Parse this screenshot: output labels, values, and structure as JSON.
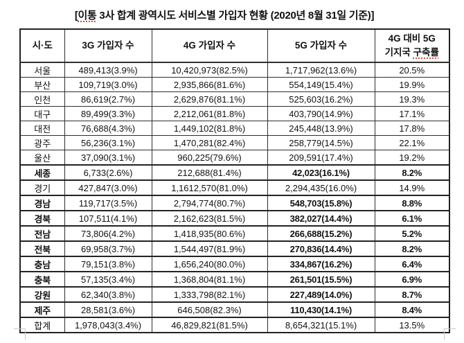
{
  "title": {
    "prefix": "[",
    "spellchecked_word": "이통",
    "suffix": " 3사 합계 광역시도 서비스별 가입자 현황 (2020년 8월 31일 기준)]"
  },
  "table": {
    "header": {
      "region": "시·도",
      "g3": "3G 가입자 수",
      "g4": "4G 가입자 수",
      "g5": "5G 가입자 수",
      "rate_line1": "4G 대비 5G",
      "rate_line2_prefix": "기지국",
      "rate_line2_spellchecked": "구축률"
    },
    "rows": [
      {
        "region": "서울",
        "g3": "489,413(3.9%)",
        "g4": "10,420,973(82.5%)",
        "g5": "1,717,962(13.6%)",
        "rate": "20.5%",
        "emphasized": false
      },
      {
        "region": "부산",
        "g3": "109,719(3.0%)",
        "g4": "2,935,866(81.6%)",
        "g5": "554,149(15.4%)",
        "rate": "19.9%",
        "emphasized": false
      },
      {
        "region": "인천",
        "g3": "86,619(2.7%)",
        "g4": "2,629,876(81.1%)",
        "g5": "525,603(16.2%)",
        "rate": "19.3%",
        "emphasized": false
      },
      {
        "region": "대구",
        "g3": "89,499(3.3%)",
        "g4": "2,212,061(81.8%)",
        "g5": "403,790(14.9%)",
        "rate": "17.1%",
        "emphasized": false
      },
      {
        "region": "대전",
        "g3": "76,688(4.3%)",
        "g4": "1,449,102(81.8%)",
        "g5": "245,448(13.9%)",
        "rate": "17.8%",
        "emphasized": false
      },
      {
        "region": "광주",
        "g3": "56,236(3.1%)",
        "g4": "1,470,281(82.4%)",
        "g5": "258,779(14.5%)",
        "rate": "22.1%",
        "emphasized": false
      },
      {
        "region": "울산",
        "g3": "37,090(3.1%)",
        "g4": "960,225(79.6%)",
        "g5": "209,591(17.4%)",
        "rate": "19.2%",
        "emphasized": false
      },
      {
        "region": "세종",
        "g3": "6,733(2.6%)",
        "g4": "212,688(81.4%)",
        "g5": "42,023(16.1%)",
        "rate": "8.2%",
        "emphasized": true
      },
      {
        "region": "경기",
        "g3": "427,847(3.0%)",
        "g4": "1,1612,570(81.0%)",
        "g5": "2,294,435(16.0%)",
        "rate": "14.9%",
        "emphasized": false
      },
      {
        "region": "경남",
        "g3": "119,717(3.5%)",
        "g4": "2,794,774(80.7%)",
        "g5": "548,703(15.8%)",
        "rate": "8.8%",
        "emphasized": true
      },
      {
        "region": "경북",
        "g3": "107,511(4.1%)",
        "g4": "2,162,623(81.5%)",
        "g5": "382,027(14.4%)",
        "rate": "6.1%",
        "emphasized": true
      },
      {
        "region": "전남",
        "g3": "73,806(4.2%)",
        "g4": "1,418,935(80.6%)",
        "g5": "266,688(15.2%)",
        "rate": "5.2%",
        "emphasized": true
      },
      {
        "region": "전북",
        "g3": "69,958(3.7%)",
        "g4": "1,544,497(81.9%)",
        "g5": "270,836(14.4%)",
        "rate": "8.2%",
        "emphasized": true
      },
      {
        "region": "충남",
        "g3": "79,151(3.8%)",
        "g4": "1,656,240(80.0%)",
        "g5": "334,867(16.2%)",
        "rate": "6.4%",
        "emphasized": true
      },
      {
        "region": "충북",
        "g3": "57,135(3.4%)",
        "g4": "1,368,804(81.1%)",
        "g5": "261,501(15.5%)",
        "rate": "6.9%",
        "emphasized": true
      },
      {
        "region": "강원",
        "g3": "62,340(3.8%)",
        "g4": "1,333,798(82.1%)",
        "g5": "227,489(14.0%)",
        "rate": "8.7%",
        "emphasized": true
      },
      {
        "region": "제주",
        "g3": "28,581(3.6%)",
        "g4": "646,508(82.3%)",
        "g5": "110,430(14.1%)",
        "rate": "8.4%",
        "emphasized": true
      },
      {
        "region": "합계",
        "g3": "1,978,043(3.4%)",
        "g4": "46,829,821(81.5%)",
        "g5": "8,654,321(15.1%)",
        "rate": "13.5%",
        "emphasized": false
      }
    ]
  }
}
